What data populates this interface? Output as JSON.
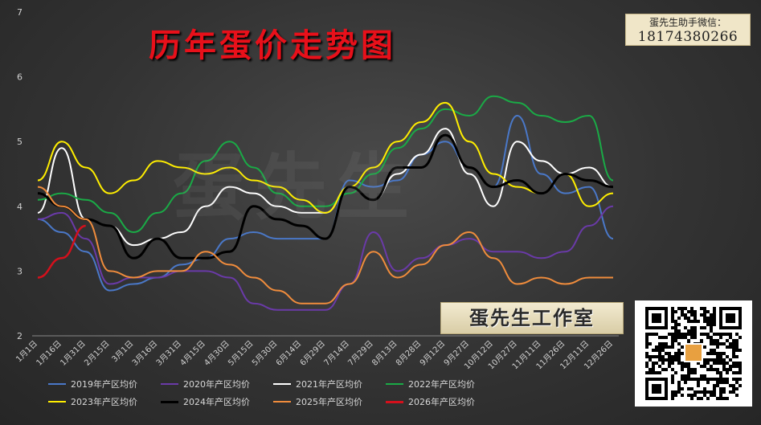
{
  "header": {
    "title": "历年蛋价走势图"
  },
  "watermark": {
    "text": "蛋先生"
  },
  "contact": {
    "label": "蛋先生助手微信：",
    "phone": "18174380266"
  },
  "studio": {
    "name": "蛋先生工作室"
  },
  "qr": {
    "icon": "qr-code-icon"
  },
  "chart_data": {
    "type": "line",
    "title": "历年蛋价走势图",
    "xlabel": "",
    "ylabel": "",
    "ylim": [
      2,
      7
    ],
    "yticks": [
      2,
      3,
      4,
      5,
      6,
      7
    ],
    "grid": false,
    "legend_position": "bottom",
    "x": [
      "1月1日",
      "1月16日",
      "1月31日",
      "2月15日",
      "3月1日",
      "3月16日",
      "3月31日",
      "4月15日",
      "4月30日",
      "5月15日",
      "5月30日",
      "6月14日",
      "6月29日",
      "7月14日",
      "7月29日",
      "8月13日",
      "8月28日",
      "9月12日",
      "9月27日",
      "10月12日",
      "10月27日",
      "11月11日",
      "11月26日",
      "12月11日",
      "12月26日"
    ],
    "series": [
      {
        "name": "2019年产区均价",
        "color": "#4a78c8",
        "width": 2,
        "values": [
          3.8,
          3.6,
          3.3,
          2.7,
          2.8,
          2.9,
          3.1,
          3.2,
          3.5,
          3.6,
          3.5,
          3.5,
          3.5,
          4.4,
          4.3,
          4.4,
          4.8,
          5.0,
          4.6,
          4.3,
          5.4,
          4.5,
          4.2,
          4.3,
          3.5
        ]
      },
      {
        "name": "2020年产区均价",
        "color": "#6a3aa8",
        "width": 2,
        "values": [
          3.8,
          3.9,
          3.5,
          2.8,
          2.9,
          2.9,
          3.0,
          3.0,
          2.9,
          2.5,
          2.4,
          2.4,
          2.4,
          2.8,
          3.6,
          3.0,
          3.2,
          3.4,
          3.5,
          3.3,
          3.3,
          3.2,
          3.3,
          3.7,
          4.0
        ]
      },
      {
        "name": "2021年产区均价",
        "color": "#ffffff",
        "width": 2,
        "values": [
          3.9,
          4.9,
          3.8,
          3.7,
          3.4,
          3.5,
          3.6,
          4.0,
          4.3,
          4.2,
          4.0,
          3.9,
          3.9,
          4.3,
          4.1,
          4.5,
          4.8,
          5.2,
          4.5,
          4.0,
          5.0,
          4.7,
          4.5,
          4.6,
          4.3
        ]
      },
      {
        "name": "2022年产区均价",
        "color": "#1aaa46",
        "width": 2,
        "values": [
          4.1,
          4.2,
          4.1,
          3.9,
          3.6,
          3.9,
          4.2,
          4.7,
          5.0,
          4.6,
          4.2,
          4.0,
          4.0,
          4.2,
          4.5,
          4.9,
          5.2,
          5.5,
          5.4,
          5.7,
          5.6,
          5.4,
          5.3,
          5.4,
          4.4
        ]
      },
      {
        "name": "2023年产区均价",
        "color": "#ffee00",
        "width": 2,
        "values": [
          4.4,
          5.0,
          4.6,
          4.2,
          4.4,
          4.7,
          4.6,
          4.5,
          4.6,
          4.4,
          4.3,
          4.1,
          3.9,
          4.3,
          4.6,
          5.0,
          5.3,
          5.6,
          5.0,
          4.5,
          4.3,
          4.2,
          4.5,
          4.0,
          4.2
        ]
      },
      {
        "name": "2024年产区均价",
        "color": "#000000",
        "width": 3,
        "values": [
          4.2,
          4.0,
          3.8,
          3.7,
          3.2,
          3.5,
          3.2,
          3.2,
          3.3,
          4.0,
          3.8,
          3.7,
          3.5,
          4.3,
          4.1,
          4.6,
          4.6,
          5.1,
          4.6,
          4.3,
          4.4,
          4.2,
          4.5,
          4.4,
          4.3
        ]
      },
      {
        "name": "2025年产区均价",
        "color": "#f08c3c",
        "width": 2,
        "values": [
          4.3,
          4.0,
          3.8,
          3.0,
          2.9,
          3.0,
          3.0,
          3.3,
          3.1,
          2.9,
          2.7,
          2.5,
          2.5,
          2.8,
          3.3,
          2.9,
          3.1,
          3.4,
          3.6,
          3.2,
          2.8,
          2.9,
          2.8,
          2.9,
          2.9
        ]
      },
      {
        "name": "2026年产区均价",
        "color": "#d4101c",
        "width": 2.5,
        "values": [
          2.9,
          3.2,
          3.7,
          null,
          null,
          null,
          null,
          null,
          null,
          null,
          null,
          null,
          null,
          null,
          null,
          null,
          null,
          null,
          null,
          null,
          null,
          null,
          null,
          null,
          null
        ]
      }
    ]
  }
}
